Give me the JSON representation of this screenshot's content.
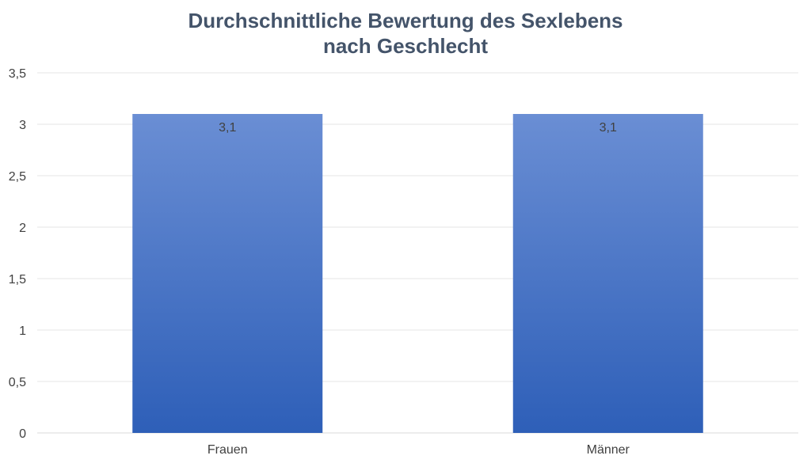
{
  "chart_data": {
    "type": "bar",
    "title_lines": [
      "Durchschnittliche Bewertung des Sexlebens",
      "nach Geschlecht"
    ],
    "categories": [
      "Frauen",
      "Männer"
    ],
    "values": [
      3.1,
      3.1
    ],
    "data_labels": [
      "3,1",
      "3,1"
    ],
    "ylim": [
      0,
      3.5
    ],
    "yticks": [
      0,
      0.5,
      1,
      1.5,
      2,
      2.5,
      3,
      3.5
    ],
    "ytick_labels": [
      "0",
      "0,5",
      "1",
      "1,5",
      "2",
      "2,5",
      "3",
      "3,5"
    ],
    "xlabel": "",
    "ylabel": "",
    "grid": true,
    "legend": "none",
    "colors": {
      "bar_top": "#6a8ed4",
      "bar_bottom": "#2e5fb8",
      "title": "#44546a",
      "text": "#404040",
      "grid": "#e6e6e6"
    }
  }
}
